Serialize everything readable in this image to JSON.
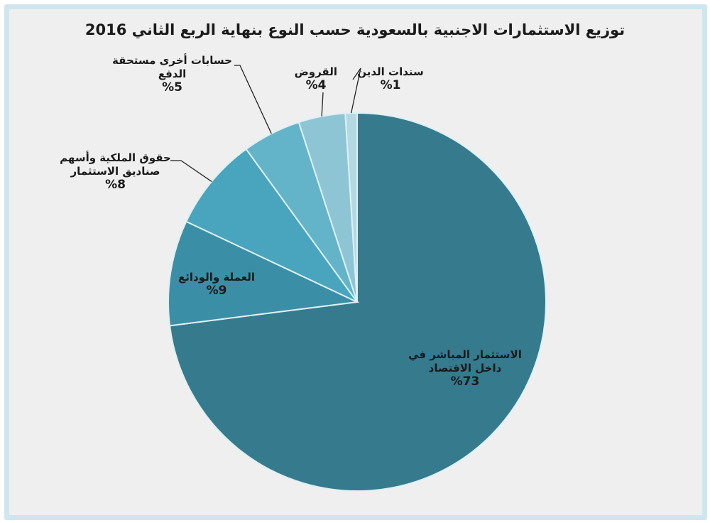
{
  "chart_data": {
    "type": "pie",
    "title": "توزيع الاستثمارات الاجنبية بالسعودية حسب النوع بنهاية الربع الثاني 2016",
    "start_angle": "top",
    "direction": "clockwise",
    "slices": [
      {
        "label": "الاستثمار المباشر في داخل الاقتصاد",
        "value": 73,
        "value_text": "%73",
        "color": "#357b8d"
      },
      {
        "label": "العملة والودائع",
        "value": 9,
        "value_text": "%9",
        "color": "#3a8fa7"
      },
      {
        "label": "حقوق الملكية وأسهم صناديق الاستثمار",
        "value": 8,
        "value_text": "%8",
        "color": "#48a5bd"
      },
      {
        "label": "حسابات أخرى مستحقة الدفع",
        "value": 5,
        "value_text": "%5",
        "color": "#63b4c9"
      },
      {
        "label": "القروض",
        "value": 4,
        "value_text": "%4",
        "color": "#8ec5d5"
      },
      {
        "label": "سندات الدين",
        "value": 1,
        "value_text": "%1",
        "color": "#b3d9e3"
      }
    ]
  }
}
